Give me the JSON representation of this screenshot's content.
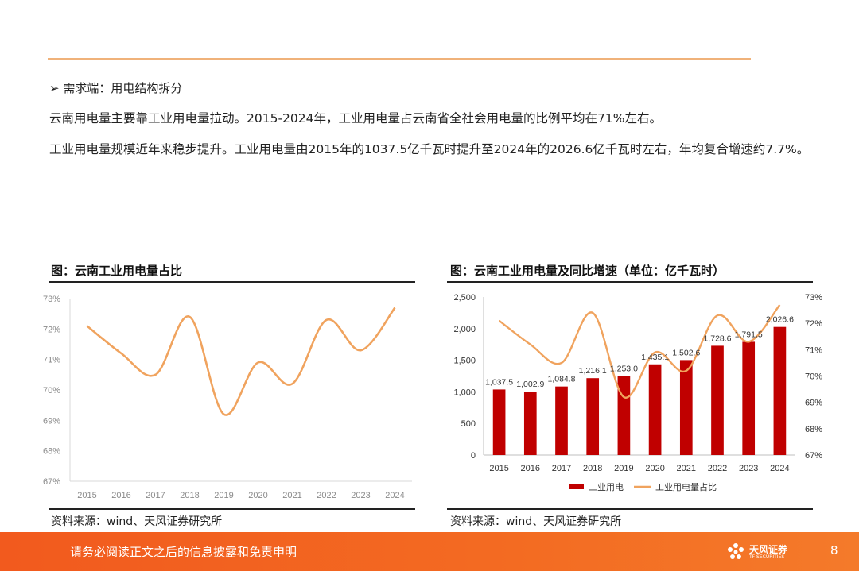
{
  "heading": "➢ 需求端：用电结构拆分",
  "paragraph1": "云南用电量主要靠工业用电量拉动。2015-2024年，工业用电量占云南省全社会用电量的比例平均在71%左右。",
  "paragraph2": "工业用电量规模近年来稳步提升。工业用电量由2015年的1037.5亿千瓦时提升至2024年的2026.6亿千瓦时左右，年均复合增速约7.7%。",
  "left_chart": {
    "title": "图：云南工业用电量占比",
    "source": "资料来源：wind、天风证券研究所"
  },
  "right_chart": {
    "title": "图：云南工业用电量及同比增速（单位：亿千瓦时）",
    "source": "资料来源：wind、天风证券研究所"
  },
  "footer": {
    "disclaimer": "请务必阅读正文之后的信息披露和免责申明",
    "logo_name": "天风证券",
    "logo_sub": "TF SECURITIES",
    "page": "8"
  },
  "colors": {
    "line": "#f0a35e",
    "bar": "#c00000",
    "accent_rule": "#f0b27a",
    "footer": "#f36b22"
  },
  "chart_data": [
    {
      "type": "line",
      "x": [
        "2015",
        "2016",
        "2017",
        "2018",
        "2019",
        "2020",
        "2021",
        "2022",
        "2023",
        "2024"
      ],
      "series": [
        {
          "values": [
            72.1,
            71.2,
            70.5,
            72.4,
            69.2,
            70.9,
            70.2,
            72.3,
            71.3,
            72.7
          ]
        }
      ],
      "ylim": [
        67,
        73
      ],
      "yticks": [
        "67%",
        "68%",
        "69%",
        "70%",
        "71%",
        "72%",
        "73%"
      ],
      "grid": false
    },
    {
      "type": "bar",
      "categories": [
        "2015",
        "2016",
        "2017",
        "2018",
        "2019",
        "2020",
        "2021",
        "2022",
        "2023",
        "2024"
      ],
      "series": [
        {
          "name": "工业用电",
          "values": [
            1037.5,
            1002.9,
            1084.8,
            1216.1,
            1253.0,
            1435.1,
            1502.6,
            1728.6,
            1791.5,
            2026.6
          ],
          "labels": [
            "1,037.5",
            "1,002.9",
            "1,084.8",
            "1,216.1",
            "1,253.0",
            "1,435.1",
            "1,502.6",
            "1,728.6",
            "1,791.5",
            "2,026.6"
          ]
        },
        {
          "name": "工业用电量占比",
          "type": "line",
          "axis": "right",
          "values": [
            72.1,
            71.2,
            70.5,
            72.4,
            69.2,
            70.9,
            70.2,
            72.3,
            71.3,
            72.7
          ]
        }
      ],
      "ylim": [
        0,
        2500
      ],
      "yticks": [
        "0",
        "500",
        "1,000",
        "1,500",
        "2,000",
        "2,500"
      ],
      "y2lim": [
        67,
        73
      ],
      "y2ticks": [
        "67%",
        "68%",
        "69%",
        "70%",
        "71%",
        "72%",
        "73%"
      ],
      "legend": "bottom"
    }
  ]
}
